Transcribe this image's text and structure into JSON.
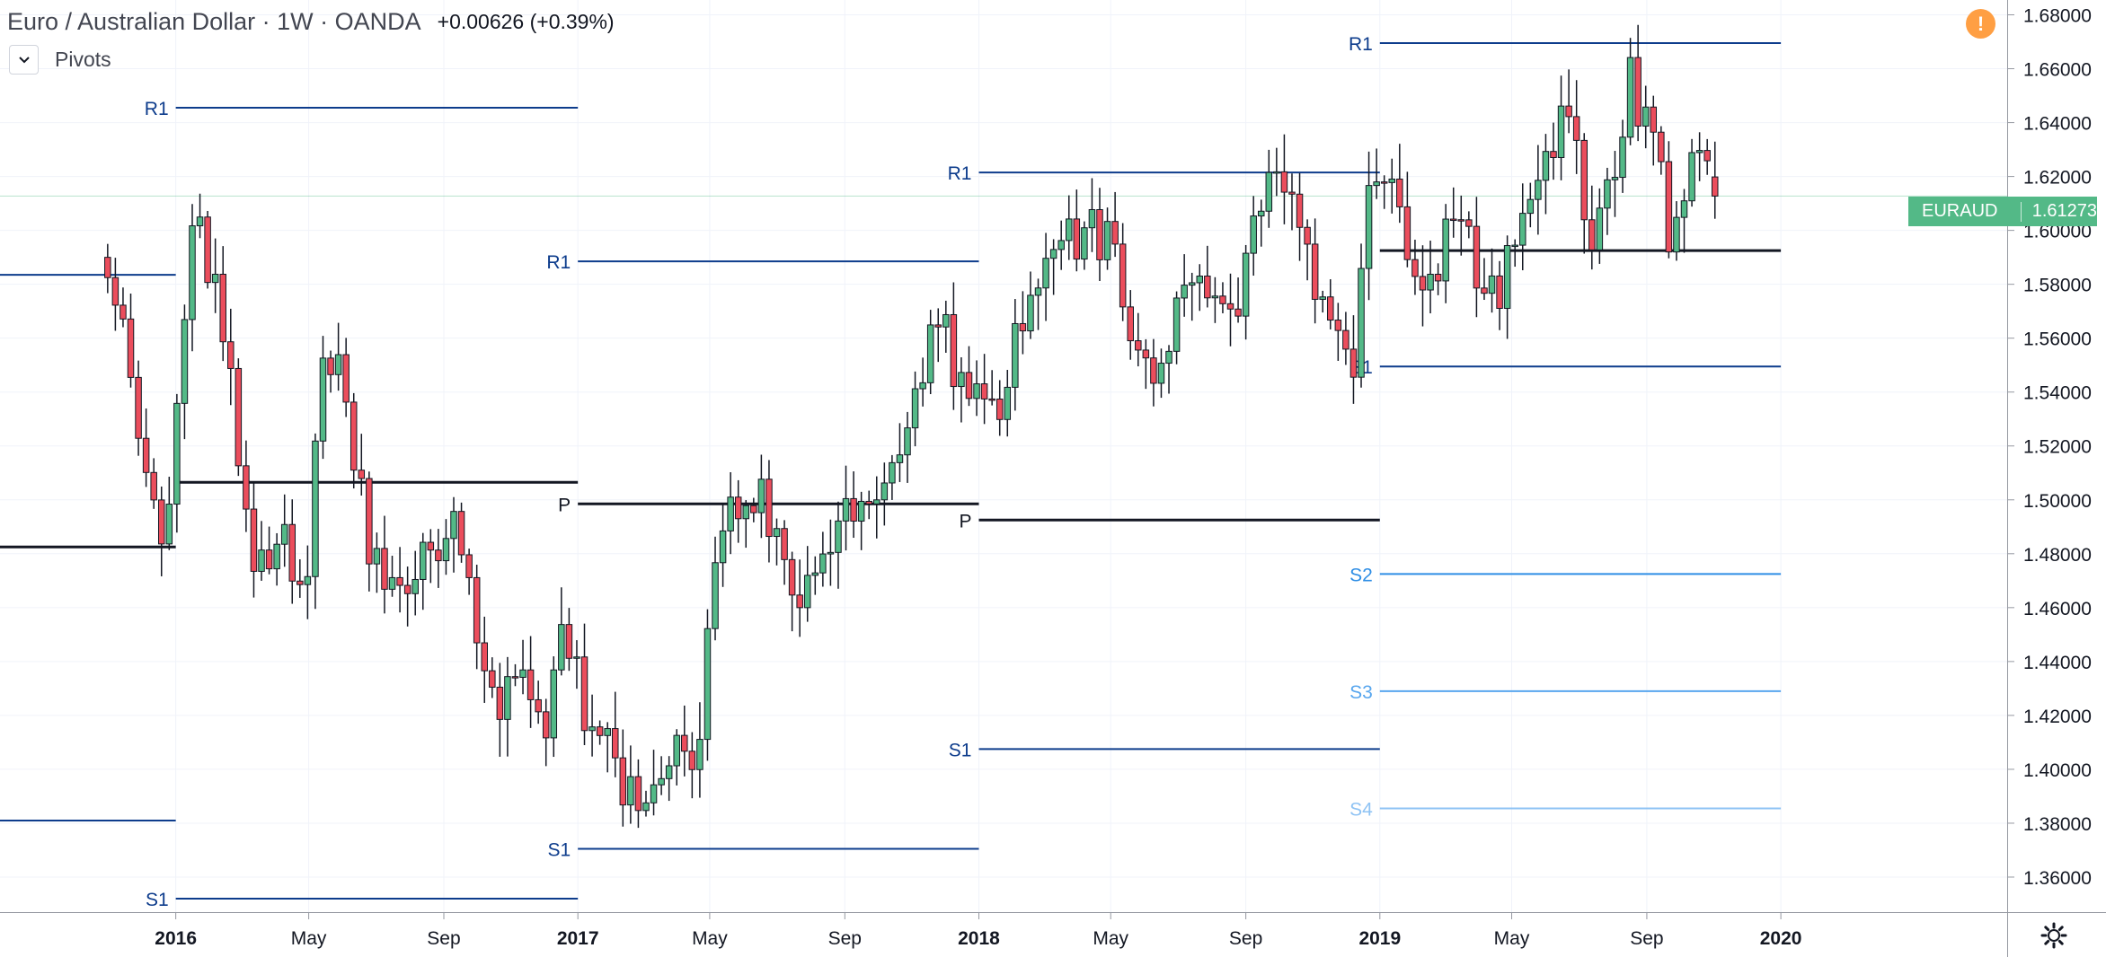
{
  "header": {
    "symbol_title": "Euro / Australian Dollar · 1W · OANDA",
    "change": "+0.00626 (+0.39%)"
  },
  "indicator": {
    "name": "Pivots",
    "toggle_icon": "chevron-down-icon"
  },
  "alert_icon": {
    "name": "warning-icon",
    "glyph": "!"
  },
  "price_badge": {
    "symbol": "EURAUD",
    "price": "1.61273"
  },
  "settings_icon": {
    "name": "gear-icon"
  },
  "colors": {
    "up": "#53b987",
    "down": "#eb4d5c",
    "pivot": "#131722",
    "resistance": "#0d3c8c",
    "support_1": "#0d3c8c",
    "s2": "#2f8ee5",
    "s3": "#58a6ee",
    "s4": "#8fc3f4",
    "last_price_line": "#53b987"
  },
  "chart_data": {
    "type": "candlestick",
    "timeframe": "1W",
    "yaxis": {
      "ylim": [
        1.347,
        1.6855
      ],
      "ticks": [
        "1.36000",
        "1.38000",
        "1.40000",
        "1.42000",
        "1.44000",
        "1.46000",
        "1.48000",
        "1.50000",
        "1.52000",
        "1.54000",
        "1.56000",
        "1.58000",
        "1.60000",
        "1.62000",
        "1.64000",
        "1.66000",
        "1.68000"
      ],
      "tick_values": [
        1.36,
        1.38,
        1.4,
        1.42,
        1.44,
        1.46,
        1.48,
        1.5,
        1.52,
        1.54,
        1.56,
        1.58,
        1.6,
        1.62,
        1.64,
        1.66,
        1.68
      ]
    },
    "xaxis": {
      "range": [
        "2015-07-25",
        "2020-07-25"
      ],
      "labels": [
        {
          "date": "2016-01-01",
          "text": "2016",
          "bold": true
        },
        {
          "date": "2016-05-01",
          "text": "May",
          "bold": false
        },
        {
          "date": "2016-09-01",
          "text": "Sep",
          "bold": false
        },
        {
          "date": "2017-01-01",
          "text": "2017",
          "bold": true
        },
        {
          "date": "2017-05-01",
          "text": "May",
          "bold": false
        },
        {
          "date": "2017-09-01",
          "text": "Sep",
          "bold": false
        },
        {
          "date": "2018-01-01",
          "text": "2018",
          "bold": true
        },
        {
          "date": "2018-05-01",
          "text": "May",
          "bold": false
        },
        {
          "date": "2018-09-01",
          "text": "Sep",
          "bold": false
        },
        {
          "date": "2019-01-01",
          "text": "2019",
          "bold": true
        },
        {
          "date": "2019-05-01",
          "text": "May",
          "bold": false
        },
        {
          "date": "2019-09-01",
          "text": "Sep",
          "bold": false
        },
        {
          "date": "2020-01-01",
          "text": "2020",
          "bold": true
        }
      ]
    },
    "last_price": 1.61273,
    "grid": true,
    "pivot_levels": [
      {
        "start": "2015-07-25",
        "end": "2016-01-01",
        "label": "",
        "value": 1.5835,
        "style": "resistance"
      },
      {
        "start": "2015-07-25",
        "end": "2016-01-01",
        "label": "",
        "value": 1.4825,
        "style": "pivot"
      },
      {
        "start": "2015-07-25",
        "end": "2016-01-01",
        "label": "",
        "value": 1.381,
        "style": "support_1"
      },
      {
        "start": "2016-01-01",
        "end": "2017-01-01",
        "label": "R1",
        "value": 1.6455,
        "style": "resistance"
      },
      {
        "start": "2016-01-01",
        "end": "2017-01-01",
        "label": "",
        "value": 1.5065,
        "style": "pivot"
      },
      {
        "start": "2016-01-01",
        "end": "2017-01-01",
        "label": "S1",
        "value": 1.352,
        "style": "support_1"
      },
      {
        "start": "2017-01-01",
        "end": "2018-01-01",
        "label": "R1",
        "value": 1.5885,
        "style": "resistance"
      },
      {
        "start": "2017-01-01",
        "end": "2018-01-01",
        "label": "P",
        "value": 1.4985,
        "style": "pivot"
      },
      {
        "start": "2017-01-01",
        "end": "2018-01-01",
        "label": "S1",
        "value": 1.3705,
        "style": "support_1"
      },
      {
        "start": "2018-01-01",
        "end": "2019-01-01",
        "label": "R1",
        "value": 1.6215,
        "style": "resistance"
      },
      {
        "start": "2018-01-01",
        "end": "2019-01-01",
        "label": "P",
        "value": 1.4925,
        "style": "pivot"
      },
      {
        "start": "2018-01-01",
        "end": "2019-01-01",
        "label": "S1",
        "value": 1.4075,
        "style": "support_1"
      },
      {
        "start": "2019-01-01",
        "end": "2020-01-01",
        "label": "R1",
        "value": 1.6695,
        "style": "resistance"
      },
      {
        "start": "2019-01-01",
        "end": "2020-01-01",
        "label": "",
        "value": 1.5925,
        "style": "pivot"
      },
      {
        "start": "2019-01-01",
        "end": "2020-01-01",
        "label": "S1",
        "value": 1.5495,
        "style": "support_1"
      },
      {
        "start": "2019-01-01",
        "end": "2020-01-01",
        "label": "S2",
        "value": 1.4725,
        "style": "s2"
      },
      {
        "start": "2019-01-01",
        "end": "2020-01-01",
        "label": "S3",
        "value": 1.429,
        "style": "s3"
      },
      {
        "start": "2019-01-01",
        "end": "2020-01-01",
        "label": "S4",
        "value": 1.3855,
        "style": "s4"
      }
    ],
    "price_path": {
      "start": "2015-10-31",
      "end": "2019-11-08",
      "points": [
        [
          "2015-10-31",
          1.59
        ],
        [
          "2015-11-28",
          1.525
        ],
        [
          "2015-12-19",
          1.475
        ],
        [
          "2016-01-15",
          1.605
        ],
        [
          "2016-02-12",
          1.57
        ],
        [
          "2016-03-11",
          1.47
        ],
        [
          "2016-04-08",
          1.49
        ],
        [
          "2016-04-29",
          1.465
        ],
        [
          "2016-05-13",
          1.555
        ],
        [
          "2016-06-03",
          1.545
        ],
        [
          "2016-06-24",
          1.48
        ],
        [
          "2016-07-22",
          1.46
        ],
        [
          "2016-08-19",
          1.485
        ],
        [
          "2016-09-16",
          1.49
        ],
        [
          "2016-10-14",
          1.42
        ],
        [
          "2016-11-11",
          1.43
        ],
        [
          "2016-12-02",
          1.41
        ],
        [
          "2016-12-16",
          1.46
        ],
        [
          "2017-01-06",
          1.425
        ],
        [
          "2017-02-03",
          1.4
        ],
        [
          "2017-03-03",
          1.376
        ],
        [
          "2017-03-24",
          1.41
        ],
        [
          "2017-04-21",
          1.405
        ],
        [
          "2017-05-05",
          1.47
        ],
        [
          "2017-05-26",
          1.5
        ],
        [
          "2017-06-16",
          1.5
        ],
        [
          "2017-07-14",
          1.465
        ],
        [
          "2017-08-04",
          1.48
        ],
        [
          "2017-09-01",
          1.49
        ],
        [
          "2017-09-29",
          1.49
        ],
        [
          "2017-10-27",
          1.515
        ],
        [
          "2017-11-17",
          1.555
        ],
        [
          "2017-12-01",
          1.56
        ],
        [
          "2017-12-22",
          1.535
        ],
        [
          "2018-01-19",
          1.535
        ],
        [
          "2018-02-09",
          1.57
        ],
        [
          "2018-03-09",
          1.585
        ],
        [
          "2018-03-30",
          1.6
        ],
        [
          "2018-04-27",
          1.6
        ],
        [
          "2018-05-25",
          1.55
        ],
        [
          "2018-06-15",
          1.545
        ],
        [
          "2018-07-06",
          1.575
        ],
        [
          "2018-08-03",
          1.58
        ],
        [
          "2018-08-24",
          1.565
        ],
        [
          "2018-09-14",
          1.615
        ],
        [
          "2018-10-05",
          1.62
        ],
        [
          "2018-10-26",
          1.6
        ],
        [
          "2018-11-16",
          1.56
        ],
        [
          "2018-12-07",
          1.545
        ],
        [
          "2018-12-21",
          1.605
        ],
        [
          "2019-01-04",
          1.625
        ],
        [
          "2019-01-25",
          1.59
        ],
        [
          "2019-02-15",
          1.585
        ],
        [
          "2019-03-08",
          1.6
        ],
        [
          "2019-03-29",
          1.59
        ],
        [
          "2019-04-19",
          1.575
        ],
        [
          "2019-05-10",
          1.6
        ],
        [
          "2019-05-31",
          1.625
        ],
        [
          "2019-06-21",
          1.64
        ],
        [
          "2019-07-12",
          1.6
        ],
        [
          "2019-08-02",
          1.62
        ],
        [
          "2019-08-16",
          1.655
        ],
        [
          "2019-09-06",
          1.64
        ],
        [
          "2019-09-20",
          1.6
        ],
        [
          "2019-10-11",
          1.63
        ],
        [
          "2019-10-25",
          1.615
        ],
        [
          "2019-11-08",
          1.6127
        ]
      ]
    }
  }
}
